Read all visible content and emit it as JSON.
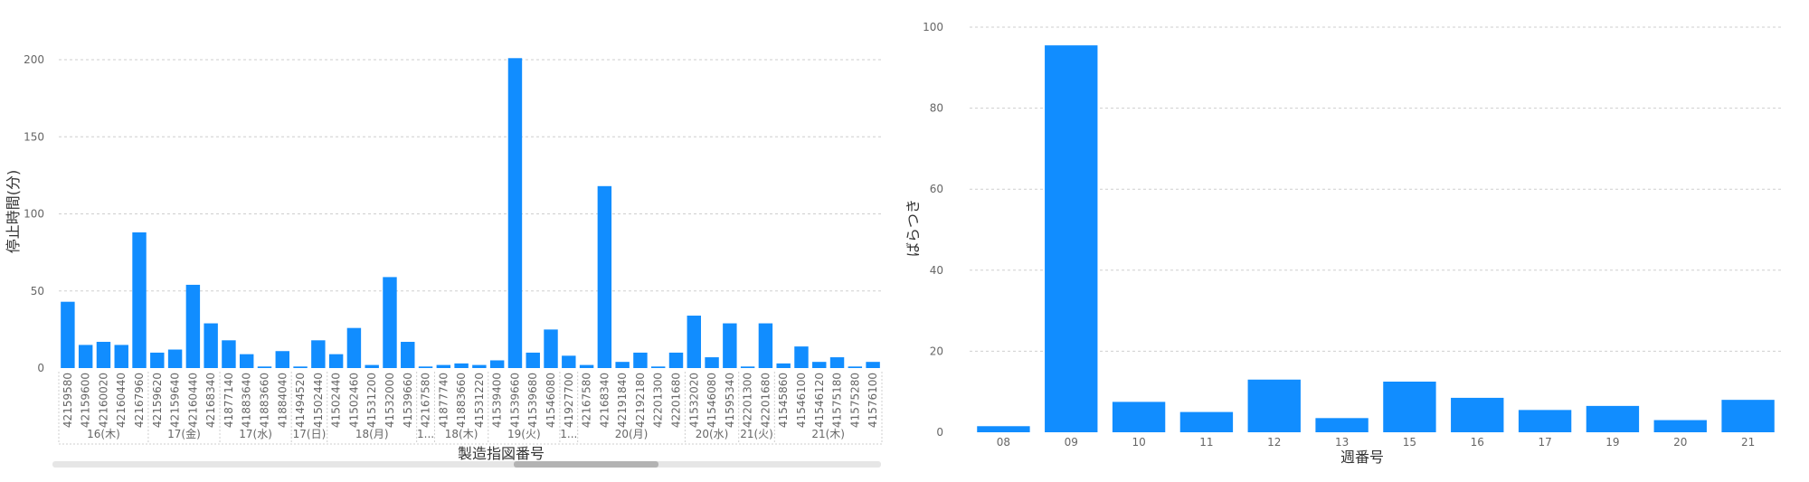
{
  "colors": {
    "bar": "#118DFF",
    "scroll_track": "#e6e6e6",
    "scroll_thumb": "#b3b3b3"
  },
  "chart_data": [
    {
      "type": "bar",
      "xlabel": "製造指図番号",
      "ylabel": "停止時間(分)",
      "ylim": [
        0,
        200
      ],
      "yticks": [
        0,
        50,
        100,
        150,
        200
      ],
      "grid": true,
      "categories": [
        "42159580",
        "42159600",
        "42160020",
        "42160440",
        "42167960",
        "42159620",
        "42159640",
        "42160440",
        "42168340",
        "41877140",
        "41883640",
        "41883660",
        "41884040",
        "41494520",
        "41502440",
        "41502440",
        "41502460",
        "41531200",
        "41532000",
        "41539660",
        "42167580",
        "41877740",
        "41883660",
        "41531220",
        "41539400",
        "41539660",
        "41539680",
        "41546080",
        "41927700",
        "42167580",
        "42168340",
        "42191840",
        "42192180",
        "42201300",
        "42201680",
        "41532020",
        "41546080",
        "41595340",
        "42201300",
        "42201680",
        "41545860",
        "41546100",
        "41546120",
        "41575180",
        "41575280",
        "41576100"
      ],
      "values": [
        43,
        15,
        17,
        15,
        88,
        10,
        12,
        54,
        29,
        18,
        9,
        1,
        11,
        1,
        18,
        9,
        26,
        2,
        59,
        17,
        1,
        2,
        3,
        2,
        5,
        201,
        10,
        25,
        8,
        2,
        118,
        4,
        10,
        1,
        10,
        34,
        7,
        29,
        1,
        29,
        3,
        14,
        4,
        7,
        1,
        4
      ],
      "groups": [
        {
          "label": "16(木)",
          "count": 5
        },
        {
          "label": "17(金)",
          "count": 4
        },
        {
          "label": "17(水)",
          "count": 4
        },
        {
          "label": "17(日)",
          "count": 2
        },
        {
          "label": "18(月)",
          "count": 5
        },
        {
          "label": "1...",
          "count": 1
        },
        {
          "label": "18(木)",
          "count": 3
        },
        {
          "label": "19(火)",
          "count": 4
        },
        {
          "label": "1...",
          "count": 1
        },
        {
          "label": "20(月)",
          "count": 6
        },
        {
          "label": "20(水)",
          "count": 3
        },
        {
          "label": "21(火)",
          "count": 2
        },
        {
          "label": "21(木)",
          "count": 6
        }
      ]
    },
    {
      "type": "bar",
      "xlabel": "週番号",
      "ylabel": "ばらつき",
      "ylim": [
        0,
        100
      ],
      "yticks": [
        0,
        20,
        40,
        60,
        80,
        100
      ],
      "grid": true,
      "categories": [
        "08",
        "09",
        "10",
        "11",
        "12",
        "13",
        "15",
        "16",
        "17",
        "19",
        "20",
        "21"
      ],
      "values": [
        1.5,
        95.5,
        7.5,
        5,
        13,
        3.5,
        12.5,
        8.5,
        5.5,
        6.5,
        3,
        8
      ]
    }
  ]
}
